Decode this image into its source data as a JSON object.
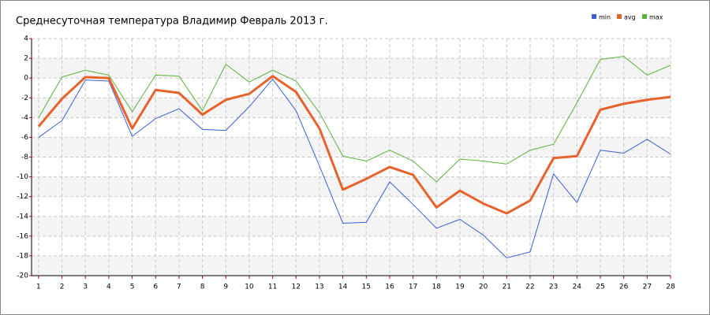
{
  "chart_data": {
    "type": "line",
    "title": "Среднесуточная температура Владимир  Февраль 2013 г.",
    "x": [
      1,
      2,
      3,
      4,
      5,
      6,
      7,
      8,
      9,
      10,
      11,
      12,
      13,
      14,
      15,
      16,
      17,
      18,
      19,
      20,
      21,
      22,
      23,
      24,
      25,
      26,
      27,
      28
    ],
    "series": [
      {
        "name": "min",
        "color": "#3a5fd6",
        "width": 1,
        "values": [
          -6.0,
          -4.3,
          -0.2,
          -0.3,
          -5.9,
          -4.1,
          -3.1,
          -5.2,
          -5.3,
          -2.9,
          -0.1,
          -3.3,
          -8.9,
          -14.7,
          -14.6,
          -10.5,
          -12.8,
          -15.2,
          -14.3,
          -15.9,
          -18.2,
          -17.6,
          -9.7,
          -12.6,
          -7.3,
          -7.6,
          -6.2,
          -7.7
        ]
      },
      {
        "name": "avg",
        "color": "#e8622c",
        "width": 3,
        "values": [
          -4.9,
          -2.1,
          0.1,
          0.0,
          -5.1,
          -1.2,
          -1.5,
          -3.7,
          -2.2,
          -1.6,
          0.2,
          -1.4,
          -5.1,
          -11.3,
          -10.2,
          -9.0,
          -9.8,
          -13.1,
          -11.4,
          -12.7,
          -13.7,
          -12.4,
          -8.1,
          -7.9,
          -3.2,
          -2.6,
          -2.2,
          -1.9
        ]
      },
      {
        "name": "max",
        "color": "#5bb33b",
        "width": 1,
        "values": [
          -4.0,
          0.1,
          0.8,
          0.3,
          -3.4,
          0.3,
          0.2,
          -3.3,
          1.4,
          -0.4,
          0.8,
          -0.3,
          -3.5,
          -7.9,
          -8.4,
          -7.3,
          -8.4,
          -10.5,
          -8.2,
          -8.4,
          -8.7,
          -7.3,
          -6.7,
          -2.5,
          1.9,
          2.2,
          0.3,
          1.3
        ]
      }
    ],
    "xlim": [
      0.7,
      28
    ],
    "xticks": [
      1,
      2,
      3,
      4,
      5,
      6,
      7,
      8,
      9,
      10,
      11,
      12,
      13,
      14,
      15,
      16,
      17,
      18,
      19,
      20,
      21,
      22,
      23,
      24,
      25,
      26,
      27,
      28
    ],
    "ylim": [
      -20,
      4
    ],
    "yticks": [
      -20,
      -18,
      -16,
      -14,
      -12,
      -10,
      -8,
      -6,
      -4,
      -2,
      0,
      2,
      4
    ],
    "grid": true,
    "legend": "top-right"
  }
}
